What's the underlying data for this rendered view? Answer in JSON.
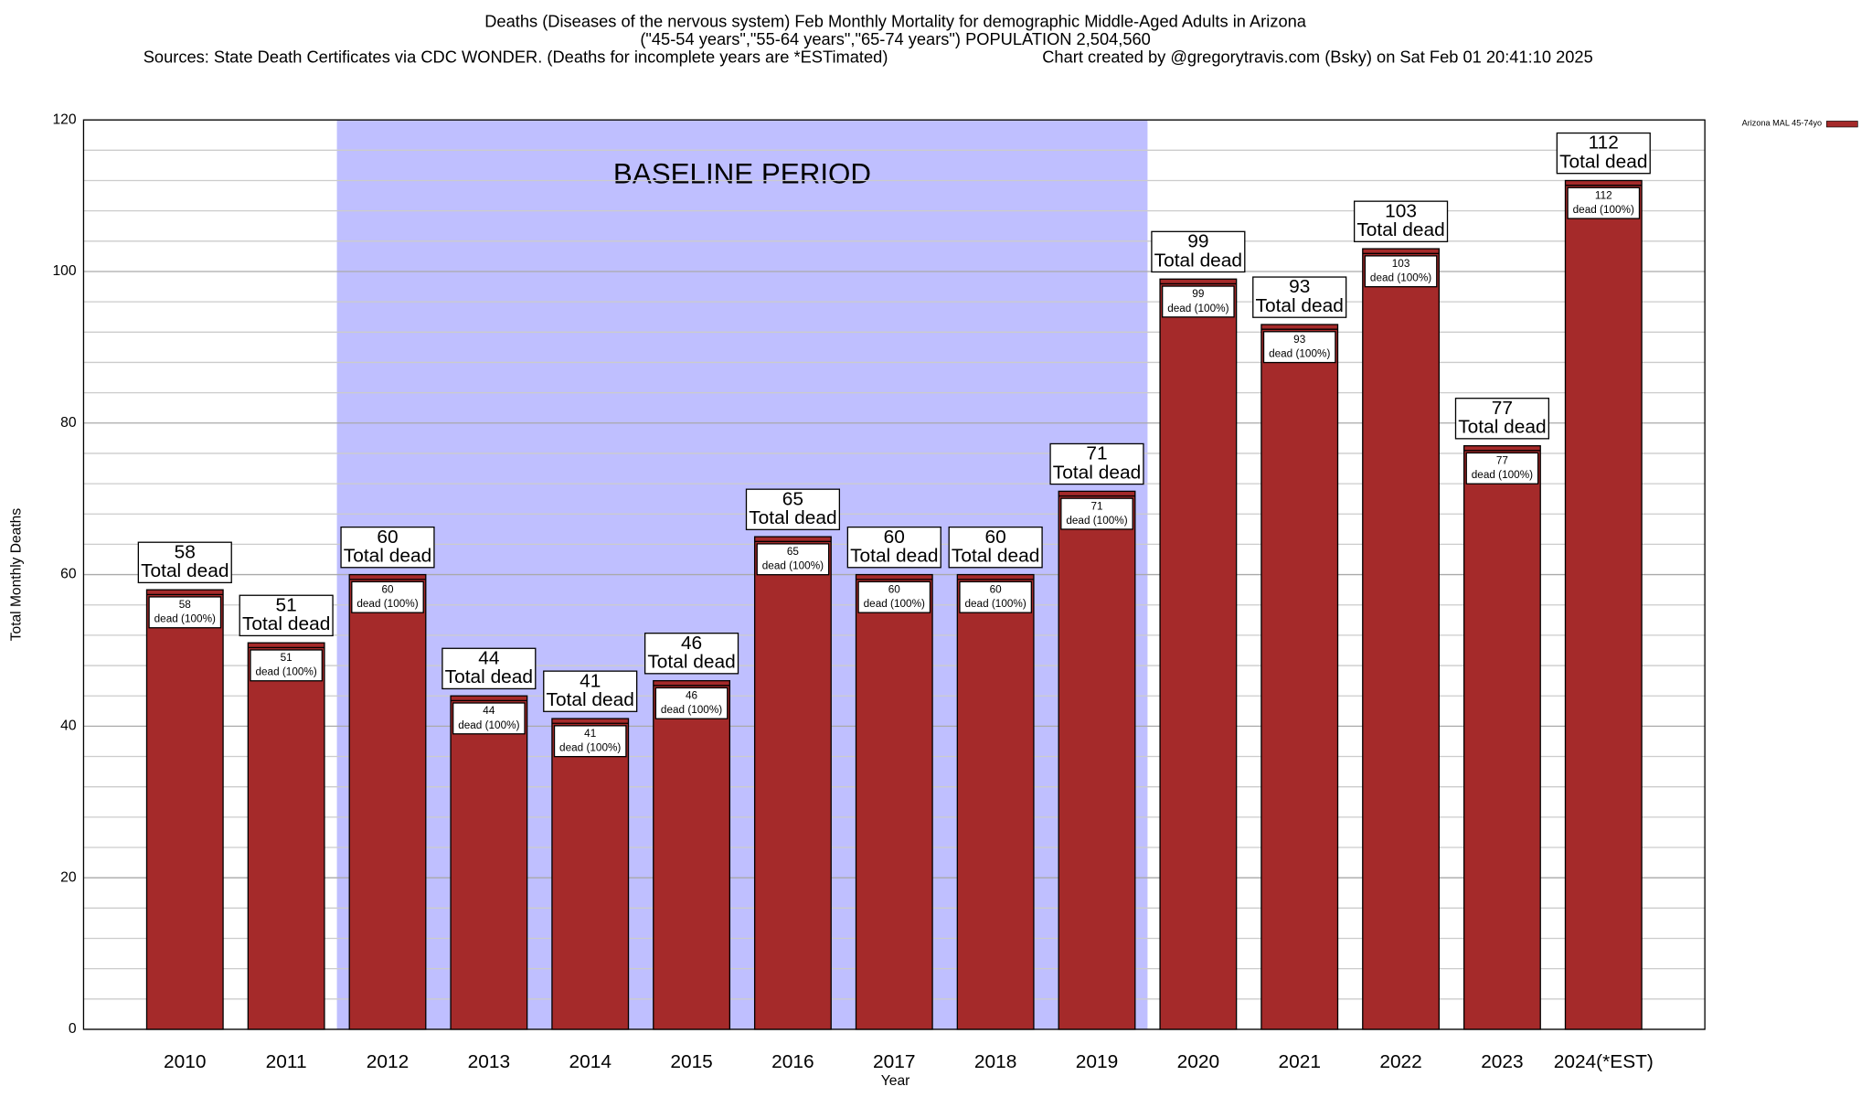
{
  "chart_data": {
    "type": "bar",
    "title": "Deaths (Diseases of the nervous system) Feb Monthly Mortality for demographic Middle-Aged Adults in Arizona",
    "subtitle": "(\"45-54 years\",\"55-64 years\",\"65-74 years\") POPULATION 2,504,560",
    "source": "Sources: State Death Certificates via CDC WONDER. (Deaths for incomplete years are *ESTimated)",
    "credit": "Chart created by @gregorytravis.com (Bsky) on Sat Feb 01 20:41:10 2025",
    "x_label": "Year",
    "y_label": "Total Monthly Deaths",
    "categories": [
      "2010",
      "2011",
      "2012",
      "2013",
      "2014",
      "2015",
      "2016",
      "2017",
      "2018",
      "2019",
      "2020",
      "2021",
      "2022",
      "2023",
      "2024(*EST)"
    ],
    "series": [
      {
        "name": "Arizona MAL 45-74yo",
        "color": "#a52a2a",
        "values": [
          58,
          51,
          60,
          44,
          41,
          46,
          65,
          60,
          60,
          71,
          99,
          93,
          103,
          77,
          112
        ]
      }
    ],
    "total_label": "Total dead",
    "inner_label": "dead (100%)",
    "baseline": {
      "label": "BASELINE PERIOD",
      "start": "2012",
      "end": "2019",
      "color": "#bfbfff"
    },
    "ylim": [
      0,
      120
    ],
    "yticks": [
      0,
      20,
      40,
      60,
      80,
      100,
      120
    ],
    "grid": true,
    "legend": "top-right"
  }
}
